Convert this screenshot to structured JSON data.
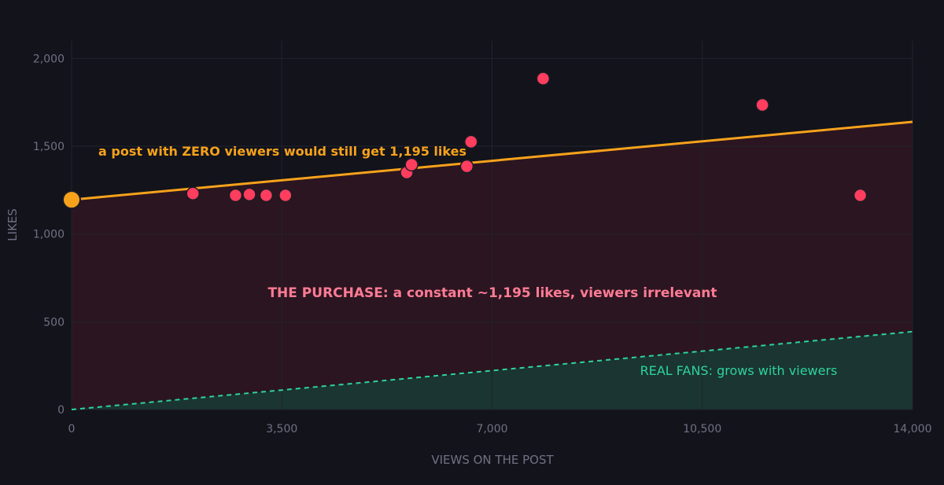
{
  "chart_data": {
    "type": "scatter",
    "title": "",
    "xlabel": "VIEWS ON THE POST",
    "ylabel": "LIKES",
    "xlim": [
      0,
      14000
    ],
    "ylim": [
      0,
      2100
    ],
    "x_ticks": [
      0,
      3500,
      7000,
      10500,
      14000
    ],
    "y_ticks": [
      0,
      500,
      1000,
      1500,
      2000
    ],
    "x_tick_labels": [
      "0",
      "3,500",
      "7,000",
      "10,500",
      "14,000"
    ],
    "y_tick_labels": [
      "0",
      "500",
      "1,000",
      "1,500",
      "2,000"
    ],
    "grid": true,
    "points": [
      {
        "x": 2020,
        "y": 1230
      },
      {
        "x": 2730,
        "y": 1220
      },
      {
        "x": 2960,
        "y": 1225
      },
      {
        "x": 3240,
        "y": 1220
      },
      {
        "x": 3560,
        "y": 1220
      },
      {
        "x": 5580,
        "y": 1350
      },
      {
        "x": 5660,
        "y": 1395
      },
      {
        "x": 6580,
        "y": 1385
      },
      {
        "x": 6650,
        "y": 1525
      },
      {
        "x": 7850,
        "y": 1885
      },
      {
        "x": 11500,
        "y": 1735
      },
      {
        "x": 13130,
        "y": 1220
      }
    ],
    "intercept_point": {
      "x": 0,
      "y": 1195
    },
    "fit_line": {
      "intercept": 1195,
      "slope": 0.0317
    },
    "organic_line": {
      "intercept": 0,
      "slope": 0.0317
    },
    "annotations": {
      "intercept_note": "a post with ZERO viewers would still get 1,195 likes",
      "purchase_note": "THE PURCHASE: a constant ~1,195 likes, viewers irrelevant",
      "organic_note": "REAL FANS: grows with viewers"
    },
    "colors": {
      "background": "#12131b",
      "grid": "#22232d",
      "points": "#ff3d5e",
      "point_edge": "#1a1b24",
      "fit_line": "#f7a21b",
      "purchase_fill": "#2b1520",
      "purchase_text": "#ff7b95",
      "organic_line": "#2fd39b",
      "organic_fill": "#1a3532",
      "organic_text": "#2fd39b",
      "tick_text": "#6f7183",
      "axis_label": "#6f7183"
    }
  }
}
